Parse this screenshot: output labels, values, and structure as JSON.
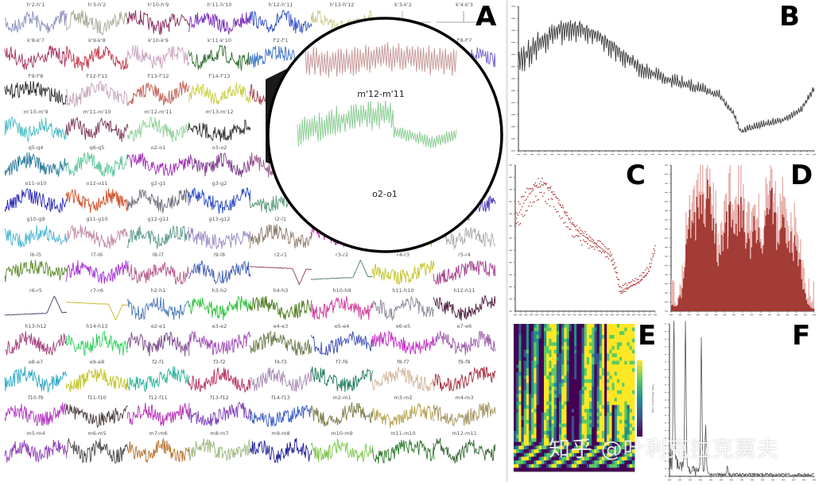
{
  "figure": {
    "panel_letters": {
      "A": "A",
      "B": "B",
      "C": "C",
      "D": "D",
      "E": "E",
      "F": "F"
    },
    "watermark": "知乎 @叶利克拉克莫夫",
    "magnifier": {
      "top_label": "m'12-m'11",
      "bottom_label": "o2-o1",
      "top_color": "#c99a9a",
      "bottom_color": "#8fcf97"
    }
  },
  "panelA": {
    "rows": [
      [
        {
          "label": "h'2-h'1",
          "color": "#8c8fbf"
        },
        {
          "label": "h'3-h'2",
          "color": "#a9ac98"
        },
        {
          "label": "h'10-h'9",
          "color": "#8a2a5e"
        },
        {
          "label": "h'11-h'10",
          "color": "#7a2bb8"
        },
        {
          "label": "h'12-h'11",
          "color": "#2f4ec4"
        },
        {
          "label": "h'13-h'12",
          "color": "#c9c98a"
        },
        {
          "label": "k'3-k'2",
          "color": "#9a9a9a",
          "flat": true
        },
        {
          "label": "k'4-k'3",
          "color": "#8a8a8a",
          "flat": true
        }
      ],
      [
        {
          "label": "k'8-k'7",
          "color": "#a5345f"
        },
        {
          "label": "k'9-k'8",
          "color": "#c0394b"
        },
        {
          "label": "k'10-k'9",
          "color": "#c9a2c0"
        },
        {
          "label": "k'11-k'10",
          "color": "#2f6b2f"
        },
        {
          "label": "f'2-f'1",
          "color": "#3a73c4"
        },
        {
          "label": "",
          "color": "#c99a9a"
        },
        {
          "label": "",
          "color": "#c99a9a"
        },
        {
          "label": "f'8-f'7",
          "color": "#6a5cc9"
        }
      ],
      [
        {
          "label": "f'9-f'8",
          "color": "#2a2a2a"
        },
        {
          "label": "f'12-f'11",
          "color": "#c4a2b8"
        },
        {
          "label": "f'13-f'12",
          "color": "#c25d52"
        },
        {
          "label": "f'14-f'13",
          "color": "#c7cc3a"
        },
        {
          "label": "m'",
          "color": "#a0404a"
        },
        {
          "label": "",
          "color": "#ffffff"
        },
        {
          "label": "",
          "color": "#ffffff"
        },
        {
          "label": "",
          "color": "#9a7aa8"
        }
      ],
      [
        {
          "label": "m'10-m'9",
          "color": "#4bbcc4"
        },
        {
          "label": "m'11-m'10",
          "color": "#7a3a5a"
        },
        {
          "label": "m'12-m'11",
          "color": "#8fcf97"
        },
        {
          "label": "m'13-m'12",
          "color": "#333333"
        },
        {
          "label": "",
          "color": "#ffffff"
        },
        {
          "label": "",
          "color": "#ffffff"
        },
        {
          "label": "",
          "color": "#ffffff"
        },
        {
          "label": "",
          "color": "#2ab5c4"
        }
      ],
      [
        {
          "label": "q5-q4",
          "color": "#2a7a9a"
        },
        {
          "label": "q6-q5",
          "color": "#5cc49a"
        },
        {
          "label": "o2-o1",
          "color": "#a02ab5"
        },
        {
          "label": "o3-o2",
          "color": "#7a3a8a"
        },
        {
          "label": "",
          "color": "#9a5a8a"
        },
        {
          "label": "",
          "color": "#ffffff"
        },
        {
          "label": "",
          "color": "#ffffff"
        },
        {
          "label": "",
          "color": "#3ab53a"
        }
      ],
      [
        {
          "label": "o11-o10",
          "color": "#2a2ab5"
        },
        {
          "label": "o12-o11",
          "color": "#d1502a"
        },
        {
          "label": "g2-g1",
          "color": "#6a6a7a"
        },
        {
          "label": "g3-g2",
          "color": "#2a4ac4"
        },
        {
          "label": "",
          "color": "#5a9a7a"
        },
        {
          "label": "",
          "color": "#ffffff"
        },
        {
          "label": "",
          "color": "#ffffff"
        },
        {
          "label": "",
          "color": "#4a3ab5"
        }
      ],
      [
        {
          "label": "g10-g9",
          "color": "#4ab5d1"
        },
        {
          "label": "g11-g10",
          "color": "#c48aa8"
        },
        {
          "label": "g12-g11",
          "color": "#5a9a8a"
        },
        {
          "label": "g13-g12",
          "color": "#9a8ac4"
        },
        {
          "label": "l2-l1",
          "color": "#8a7a6a"
        },
        {
          "label": "",
          "color": "#c42ab5"
        },
        {
          "label": "",
          "color": "#c4c43a"
        },
        {
          "label": "l5-l4",
          "color": "#aaaaaa"
        }
      ],
      [
        {
          "label": "l6-l5",
          "color": "#5a8a2a"
        },
        {
          "label": "l7-l6",
          "color": "#a02ad1"
        },
        {
          "label": "l8-l7",
          "color": "#b55a8a"
        },
        {
          "label": "l9-l8",
          "color": "#3a5ab5"
        },
        {
          "label": "r2-r1",
          "color": "#8a3a5a",
          "smooth": "dip"
        },
        {
          "label": "r3-r2",
          "color": "#4a7a6a",
          "smooth": "peak"
        },
        {
          "label": "r4-r3",
          "color": "#c4c42a"
        },
        {
          "label": "r5-r4",
          "color": "#a03a8a"
        }
      ],
      [
        {
          "label": "r6-r5",
          "color": "#3a3a6a",
          "smooth": "peak"
        },
        {
          "label": "r7-r6",
          "color": "#c4b52a",
          "smooth": "dip"
        },
        {
          "label": "h2-h1",
          "color": "#4a7ab5"
        },
        {
          "label": "h3-h2",
          "color": "#2ac43a"
        },
        {
          "label": "h4-h3",
          "color": "#4a7a1a"
        },
        {
          "label": "h10-h9",
          "color": "#d13a9a"
        },
        {
          "label": "h11-h10",
          "color": "#8a8a9a"
        },
        {
          "label": "h12-h11",
          "color": "#4a1a3a"
        }
      ],
      [
        {
          "label": "h13-h12",
          "color": "#a03a7a"
        },
        {
          "label": "h14-h13",
          "color": "#2ad15a"
        },
        {
          "label": "e2-e1",
          "color": "#7a4a8a"
        },
        {
          "label": "e3-e2",
          "color": "#a04ab5"
        },
        {
          "label": "e4-e3",
          "color": "#6a7a4a"
        },
        {
          "label": "e5-e4",
          "color": "#3a4ab5"
        },
        {
          "label": "e6-e5",
          "color": "#c42ac4"
        },
        {
          "label": "e7-e6",
          "color": "#9a5aa8"
        }
      ],
      [
        {
          "label": "e8-e7",
          "color": "#2aa8c4"
        },
        {
          "label": "e9-e8",
          "color": "#c4c42a"
        },
        {
          "label": "f2-f1",
          "color": "#2ab59a"
        },
        {
          "label": "f3-f2",
          "color": "#b52a5a"
        },
        {
          "label": "f4-f3",
          "color": "#a88ab5"
        },
        {
          "label": "f7-f6",
          "color": "#1a7a5a"
        },
        {
          "label": "f8-f7",
          "color": "#d1b59a"
        },
        {
          "label": "f9-f8",
          "color": "#a02a3a"
        }
      ],
      [
        {
          "label": "f10-f9",
          "color": "#b53ac4"
        },
        {
          "label": "f11-f10",
          "color": "#4a3a3a"
        },
        {
          "label": "f12-f11",
          "color": "#b52ab5"
        },
        {
          "label": "f13-f12",
          "color": "#7a3ab5"
        },
        {
          "label": "f14-f13",
          "color": "#3a5ac4"
        },
        {
          "label": "m2-m1",
          "color": "#7a7a4a"
        },
        {
          "label": "m3-m2",
          "color": "#b5a04a"
        },
        {
          "label": "m4-m3",
          "color": "#a0905a"
        }
      ],
      [
        {
          "label": "m5-m4",
          "color": "#8a3ab5"
        },
        {
          "label": "m6-m5",
          "color": "#4a4a4a"
        },
        {
          "label": "m7-m6",
          "color": "#b5702a"
        },
        {
          "label": "m8-m7",
          "color": "#9ab57a"
        },
        {
          "label": "m9-m8",
          "color": "#1a1a9a"
        },
        {
          "label": "m10-m9",
          "color": "#7ac44a"
        },
        {
          "label": "m11-m10",
          "color": "#2a7a2a"
        },
        {
          "label": "m12-m11",
          "color": "#3a6a3a"
        }
      ]
    ]
  },
  "chart_data": [
    {
      "panel": "A",
      "type": "line",
      "title": "",
      "description": "Grid of small-multiple bipolar iEEG channel traces",
      "channels": [
        "h'2-h'1",
        "h'3-h'2",
        "h'10-h'9",
        "h'11-h'10",
        "h'12-h'11",
        "h'13-h'12",
        "k'3-k'2",
        "k'4-k'3",
        "k'8-k'7",
        "k'9-k'8",
        "k'10-k'9",
        "k'11-k'10",
        "f'2-f'1",
        "f'8-f'7",
        "f'9-f'8",
        "f'12-f'11",
        "f'13-f'12",
        "f'14-f'13",
        "m'10-m'9",
        "m'11-m'10",
        "m'12-m'11",
        "m'13-m'12",
        "q5-q4",
        "q6-q5",
        "o2-o1",
        "o3-o2",
        "o11-o10",
        "o12-o11",
        "g2-g1",
        "g3-g2",
        "g10-g9",
        "g11-g10",
        "g12-g11",
        "g13-g12",
        "l2-l1",
        "l5-l4",
        "l6-l5",
        "l7-l6",
        "l8-l7",
        "l9-l8",
        "r2-r1",
        "r3-r2",
        "r4-r3",
        "r5-r4",
        "r6-r5",
        "r7-r6",
        "h2-h1",
        "h3-h2",
        "h4-h3",
        "h10-h9",
        "h11-h10",
        "h12-h11",
        "h13-h12",
        "h14-h13",
        "e2-e1",
        "e3-e2",
        "e4-e3",
        "e5-e4",
        "e6-e5",
        "e7-e6",
        "e8-e7",
        "e9-e8",
        "f2-f1",
        "f3-f2",
        "f4-f3",
        "f7-f6",
        "f8-f7",
        "f9-f8",
        "f10-f9",
        "f11-f10",
        "f12-f11",
        "f13-f12",
        "f14-f13",
        "m2-m1",
        "m3-m2",
        "m4-m3",
        "m5-m4",
        "m6-m5",
        "m7-m6",
        "m8-m7",
        "m9-m8",
        "m10-m9",
        "m11-m10",
        "m12-m11"
      ],
      "magnified": [
        "m'12-m'11",
        "o2-o1"
      ]
    },
    {
      "panel": "B",
      "type": "line",
      "title": "",
      "xlabel": "",
      "ylabel": "",
      "x_ticks": [
        "0",
        "0.1",
        "0.2",
        "0.3",
        "0.4",
        "0.5",
        "0.6",
        "0.7",
        "0.8",
        "0.9",
        "1",
        "1.1",
        "1.2",
        "1.3",
        "1.4",
        "1.5",
        "1.6",
        "1.7",
        "1.8",
        "1.9",
        "2",
        "2.1",
        "2.2",
        "2.3",
        "2.4",
        "2.5",
        "2.6",
        "2.7",
        "2.8",
        "2.9",
        "3",
        "3.1",
        "3.2",
        "3.3",
        "3.4",
        "3.5",
        "3.6",
        "3.7",
        "3.8",
        "3.9",
        "4",
        "4.1",
        "4.2",
        "4.3",
        "4.4"
      ],
      "y_ticks": [
        "600",
        "500",
        "400",
        "300",
        "200",
        "100",
        "0",
        "-100",
        "-200",
        "-300",
        "-400",
        "-500"
      ],
      "ylim": [
        -600,
        650
      ],
      "trend_points": [
        [
          0,
          170
        ],
        [
          0.3,
          330
        ],
        [
          0.6,
          440
        ],
        [
          0.9,
          460
        ],
        [
          1.2,
          380
        ],
        [
          1.5,
          250
        ],
        [
          1.8,
          120
        ],
        [
          2.1,
          40
        ],
        [
          2.4,
          -10
        ],
        [
          2.7,
          -60
        ],
        [
          3.0,
          -120
        ],
        [
          3.2,
          -280
        ],
        [
          3.3,
          -430
        ],
        [
          3.6,
          -380
        ],
        [
          3.9,
          -340
        ],
        [
          4.2,
          -250
        ],
        [
          4.4,
          -60
        ]
      ],
      "line_color": "#3a3a3a",
      "grid": false
    },
    {
      "panel": "C",
      "type": "scatter",
      "title": "",
      "description": "Same signal as B rendered as dotted markers",
      "trend_points": [
        [
          0,
          170
        ],
        [
          0.3,
          330
        ],
        [
          0.6,
          440
        ],
        [
          0.9,
          460
        ],
        [
          1.2,
          380
        ],
        [
          1.5,
          250
        ],
        [
          1.8,
          120
        ],
        [
          2.1,
          40
        ],
        [
          2.4,
          -10
        ],
        [
          2.7,
          -60
        ],
        [
          3.0,
          -120
        ],
        [
          3.2,
          -280
        ],
        [
          3.3,
          -430
        ],
        [
          3.6,
          -380
        ],
        [
          3.9,
          -340
        ],
        [
          4.2,
          -250
        ],
        [
          4.4,
          -60
        ]
      ],
      "marker_color": "#b03a3a",
      "grid": false
    },
    {
      "panel": "D",
      "type": "bar",
      "title": "",
      "description": "Amplitude distribution histogram",
      "bar_color": "#a33b36",
      "highlight_color": "#e8b4b0",
      "approx_bin_profile": [
        0.05,
        0.04,
        0.15,
        0.55,
        0.8,
        0.72,
        0.86,
        0.95,
        0.7,
        0.4,
        0.62,
        0.7,
        0.66,
        0.8,
        0.6,
        0.55,
        0.62,
        0.58,
        0.66,
        0.78,
        0.6,
        0.72,
        0.66,
        0.52,
        0.45,
        0.2,
        0.05,
        0.02
      ],
      "grid": false
    },
    {
      "panel": "E",
      "type": "heatmap",
      "title": "",
      "description": "Wavelet time-frequency power map (viridis colormap)",
      "colorbar_label": "Time-frequency map",
      "colormap": [
        "#440154",
        "#3b528b",
        "#21918c",
        "#5ec962",
        "#fde725"
      ]
    },
    {
      "panel": "F",
      "type": "line",
      "title": "",
      "description": "Power spectrum with dominant low-frequency peaks",
      "peaks": [
        [
          0.03,
          1.0
        ],
        [
          0.11,
          1.0
        ],
        [
          0.22,
          0.88
        ],
        [
          0.25,
          0.3
        ],
        [
          0.4,
          0.05
        ]
      ],
      "line_color": "#555555",
      "grid": false
    }
  ]
}
